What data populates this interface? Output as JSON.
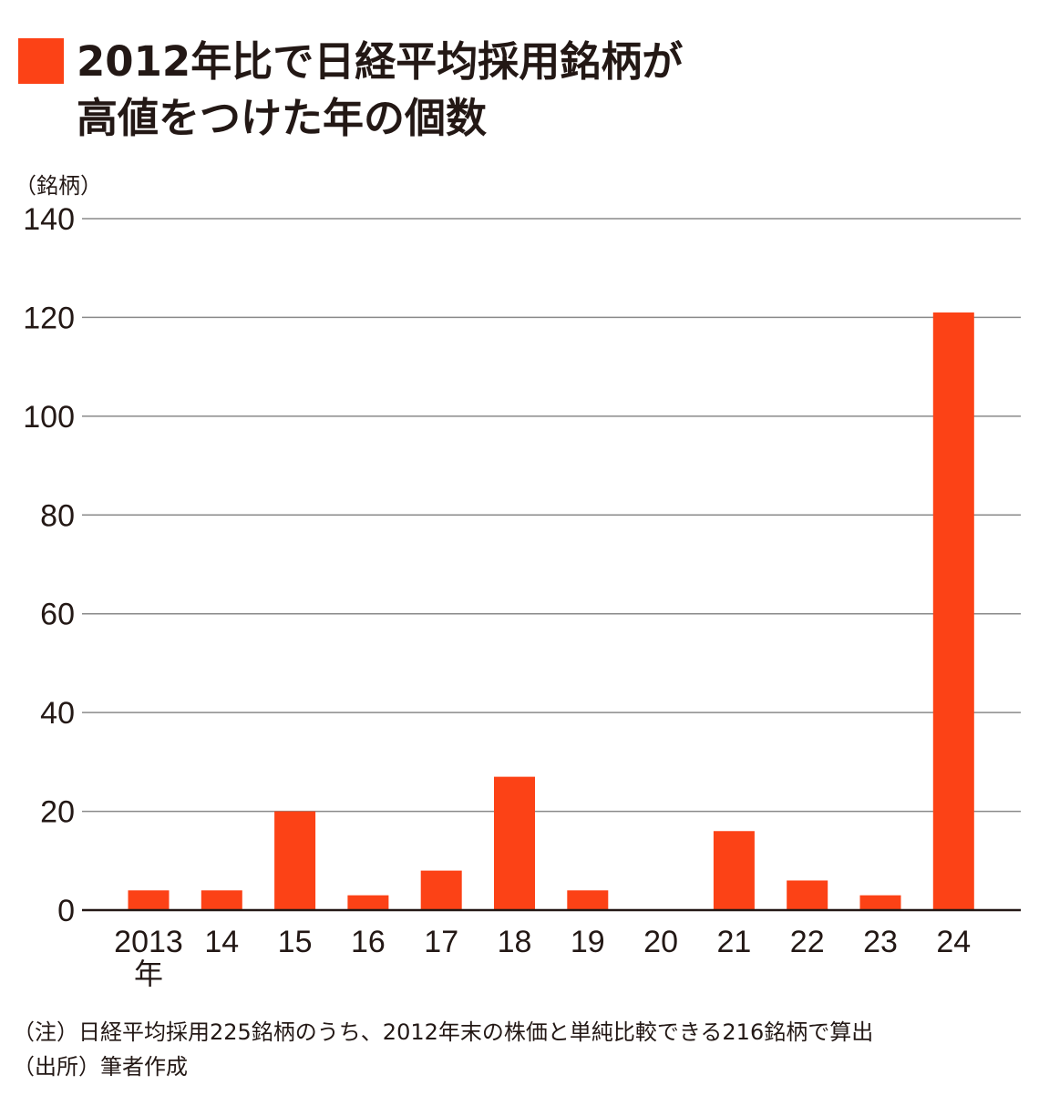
{
  "title": {
    "line1": "2012年比で日経平均採用銘柄が",
    "line2": "高値をつけた年の個数"
  },
  "colors": {
    "bar": "#fc4216",
    "grid": "#8a8a8a",
    "baseline": "#231815",
    "text": "#231815"
  },
  "chart_data": {
    "type": "bar",
    "unit_label": "（銘柄）",
    "categories": [
      "2013",
      "14",
      "15",
      "16",
      "17",
      "18",
      "19",
      "20",
      "21",
      "22",
      "23",
      "24"
    ],
    "first_category_suffix": "年",
    "values": [
      4,
      4,
      20,
      3,
      8,
      27,
      4,
      0,
      16,
      6,
      3,
      121
    ],
    "ylim": [
      0,
      140
    ],
    "yticks": [
      0,
      20,
      40,
      60,
      80,
      100,
      120,
      140
    ],
    "grid": true,
    "legend": "none"
  },
  "notes": {
    "note": "（注）日経平均採用225銘柄のうち、2012年末の株価と単純比較できる216銘柄で算出",
    "source": "（出所）筆者作成"
  }
}
